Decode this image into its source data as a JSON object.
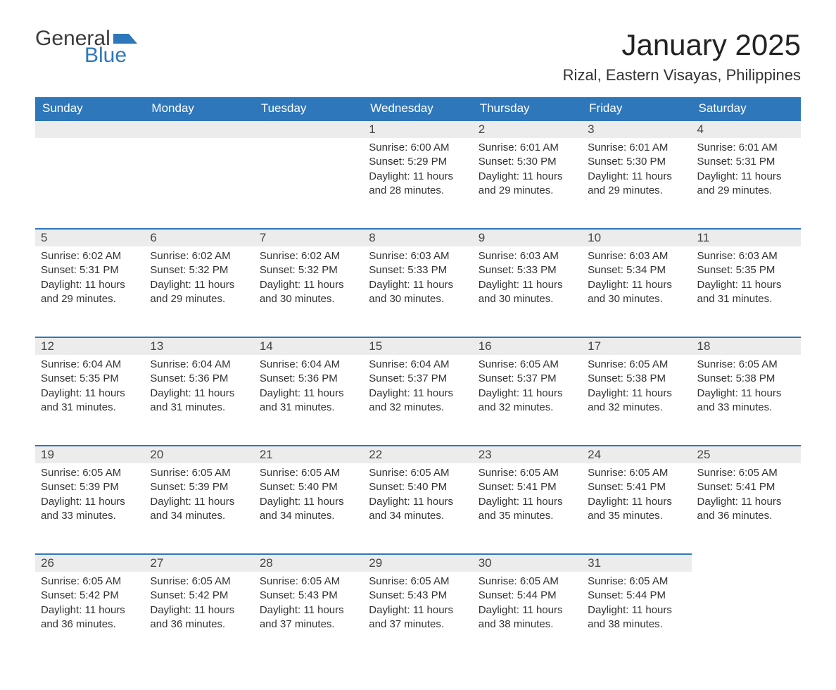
{
  "logo": {
    "general": "General",
    "blue": "Blue",
    "flag_color": "#2f77bb"
  },
  "title": "January 2025",
  "location": "Rizal, Eastern Visayas, Philippines",
  "colors": {
    "header_bg": "#2f77bb",
    "header_text": "#ffffff",
    "daynum_bg": "#ececec",
    "daynum_border": "#2f77bb",
    "body_text": "#333333",
    "background": "#ffffff"
  },
  "fonts": {
    "title_size_pt": 32,
    "location_size_pt": 17,
    "header_size_pt": 13,
    "daynum_size_pt": 13,
    "detail_size_pt": 11
  },
  "day_headers": [
    "Sunday",
    "Monday",
    "Tuesday",
    "Wednesday",
    "Thursday",
    "Friday",
    "Saturday"
  ],
  "weeks": [
    [
      null,
      null,
      null,
      {
        "n": "1",
        "sunrise": "6:00 AM",
        "sunset": "5:29 PM",
        "daylight": "11 hours and 28 minutes."
      },
      {
        "n": "2",
        "sunrise": "6:01 AM",
        "sunset": "5:30 PM",
        "daylight": "11 hours and 29 minutes."
      },
      {
        "n": "3",
        "sunrise": "6:01 AM",
        "sunset": "5:30 PM",
        "daylight": "11 hours and 29 minutes."
      },
      {
        "n": "4",
        "sunrise": "6:01 AM",
        "sunset": "5:31 PM",
        "daylight": "11 hours and 29 minutes."
      }
    ],
    [
      {
        "n": "5",
        "sunrise": "6:02 AM",
        "sunset": "5:31 PM",
        "daylight": "11 hours and 29 minutes."
      },
      {
        "n": "6",
        "sunrise": "6:02 AM",
        "sunset": "5:32 PM",
        "daylight": "11 hours and 29 minutes."
      },
      {
        "n": "7",
        "sunrise": "6:02 AM",
        "sunset": "5:32 PM",
        "daylight": "11 hours and 30 minutes."
      },
      {
        "n": "8",
        "sunrise": "6:03 AM",
        "sunset": "5:33 PM",
        "daylight": "11 hours and 30 minutes."
      },
      {
        "n": "9",
        "sunrise": "6:03 AM",
        "sunset": "5:33 PM",
        "daylight": "11 hours and 30 minutes."
      },
      {
        "n": "10",
        "sunrise": "6:03 AM",
        "sunset": "5:34 PM",
        "daylight": "11 hours and 30 minutes."
      },
      {
        "n": "11",
        "sunrise": "6:03 AM",
        "sunset": "5:35 PM",
        "daylight": "11 hours and 31 minutes."
      }
    ],
    [
      {
        "n": "12",
        "sunrise": "6:04 AM",
        "sunset": "5:35 PM",
        "daylight": "11 hours and 31 minutes."
      },
      {
        "n": "13",
        "sunrise": "6:04 AM",
        "sunset": "5:36 PM",
        "daylight": "11 hours and 31 minutes."
      },
      {
        "n": "14",
        "sunrise": "6:04 AM",
        "sunset": "5:36 PM",
        "daylight": "11 hours and 31 minutes."
      },
      {
        "n": "15",
        "sunrise": "6:04 AM",
        "sunset": "5:37 PM",
        "daylight": "11 hours and 32 minutes."
      },
      {
        "n": "16",
        "sunrise": "6:05 AM",
        "sunset": "5:37 PM",
        "daylight": "11 hours and 32 minutes."
      },
      {
        "n": "17",
        "sunrise": "6:05 AM",
        "sunset": "5:38 PM",
        "daylight": "11 hours and 32 minutes."
      },
      {
        "n": "18",
        "sunrise": "6:05 AM",
        "sunset": "5:38 PM",
        "daylight": "11 hours and 33 minutes."
      }
    ],
    [
      {
        "n": "19",
        "sunrise": "6:05 AM",
        "sunset": "5:39 PM",
        "daylight": "11 hours and 33 minutes."
      },
      {
        "n": "20",
        "sunrise": "6:05 AM",
        "sunset": "5:39 PM",
        "daylight": "11 hours and 34 minutes."
      },
      {
        "n": "21",
        "sunrise": "6:05 AM",
        "sunset": "5:40 PM",
        "daylight": "11 hours and 34 minutes."
      },
      {
        "n": "22",
        "sunrise": "6:05 AM",
        "sunset": "5:40 PM",
        "daylight": "11 hours and 34 minutes."
      },
      {
        "n": "23",
        "sunrise": "6:05 AM",
        "sunset": "5:41 PM",
        "daylight": "11 hours and 35 minutes."
      },
      {
        "n": "24",
        "sunrise": "6:05 AM",
        "sunset": "5:41 PM",
        "daylight": "11 hours and 35 minutes."
      },
      {
        "n": "25",
        "sunrise": "6:05 AM",
        "sunset": "5:41 PM",
        "daylight": "11 hours and 36 minutes."
      }
    ],
    [
      {
        "n": "26",
        "sunrise": "6:05 AM",
        "sunset": "5:42 PM",
        "daylight": "11 hours and 36 minutes."
      },
      {
        "n": "27",
        "sunrise": "6:05 AM",
        "sunset": "5:42 PM",
        "daylight": "11 hours and 36 minutes."
      },
      {
        "n": "28",
        "sunrise": "6:05 AM",
        "sunset": "5:43 PM",
        "daylight": "11 hours and 37 minutes."
      },
      {
        "n": "29",
        "sunrise": "6:05 AM",
        "sunset": "5:43 PM",
        "daylight": "11 hours and 37 minutes."
      },
      {
        "n": "30",
        "sunrise": "6:05 AM",
        "sunset": "5:44 PM",
        "daylight": "11 hours and 38 minutes."
      },
      {
        "n": "31",
        "sunrise": "6:05 AM",
        "sunset": "5:44 PM",
        "daylight": "11 hours and 38 minutes."
      },
      null
    ]
  ],
  "labels": {
    "sunrise": "Sunrise: ",
    "sunset": "Sunset: ",
    "daylight": "Daylight: "
  }
}
